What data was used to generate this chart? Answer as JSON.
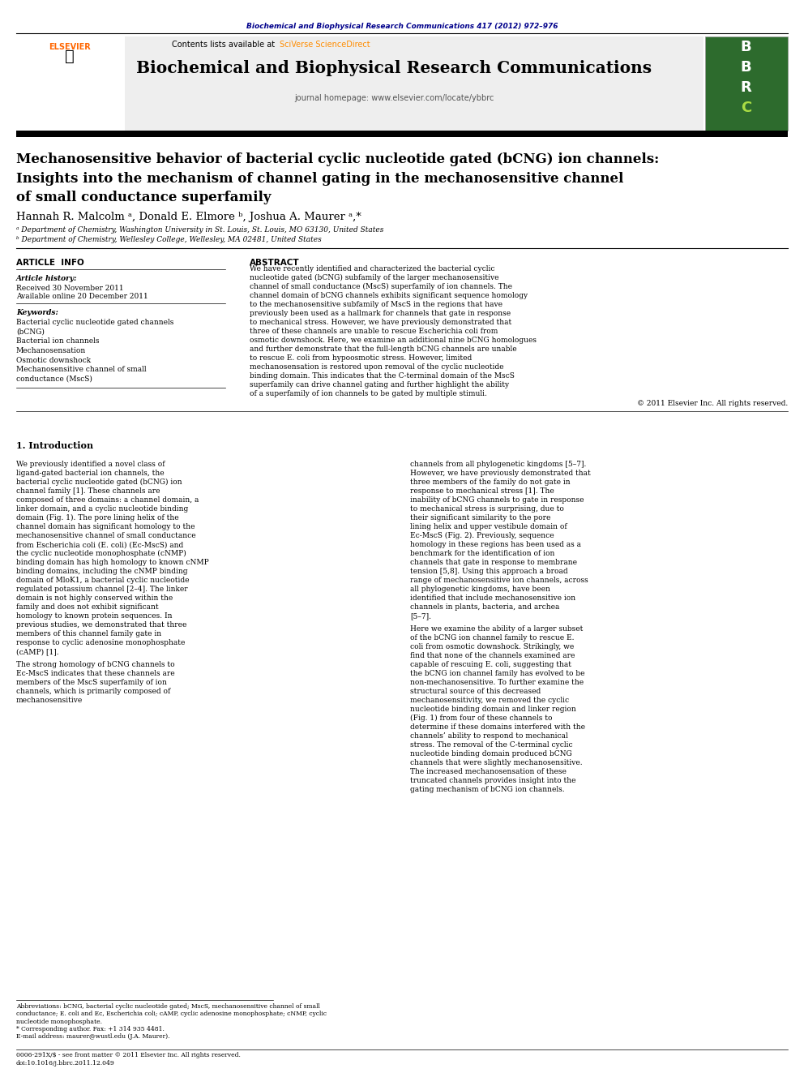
{
  "page_width": 9.92,
  "page_height": 13.23,
  "bg_color": "#ffffff",
  "header_journal_text": "Biochemical and Biophysical Research Communications 417 (2012) 972–976",
  "header_journal_color": "#00008B",
  "journal_name": "Biochemical and Biophysical Research Communications",
  "journal_homepage": "journal homepage: www.elsevier.com/locate/ybbrc",
  "contents_text": "Contents lists available at",
  "sciverse_text": "SciVerse ScienceDirect",
  "sciverse_color": "#FF8C00",
  "elsevier_color": "#FF6600",
  "article_title_line1": "Mechanosensitive behavior of bacterial cyclic nucleotide gated (bCNG) ion channels:",
  "article_title_line2": "Insights into the mechanism of channel gating in the mechanosensitive channel",
  "article_title_line3": "of small conductance superfamily",
  "authors": "Hannah R. Malcolm ᵃ, Donald E. Elmore ᵇ, Joshua A. Maurer ᵃ,*",
  "affiliation_a": "ᵃ Department of Chemistry, Washington University in St. Louis, St. Louis, MO 63130, United States",
  "affiliation_b": "ᵇ Department of Chemistry, Wellesley College, Wellesley, MA 02481, United States",
  "article_info_header": "ARTICLE  INFO",
  "abstract_header": "ABSTRACT",
  "article_history_label": "Article history:",
  "received_text": "Received 30 November 2011",
  "available_text": "Available online 20 December 2011",
  "keywords_label": "Keywords:",
  "keywords": [
    "Bacterial cyclic nucleotide gated channels",
    "(bCNG)",
    "Bacterial ion channels",
    "Mechanosensation",
    "Osmotic downshock",
    "Mechanosensitive channel of small",
    "conductance (MscS)"
  ],
  "abstract_text": "We have recently identified and characterized the bacterial cyclic nucleotide gated (bCNG) subfamily of the larger mechanosensitive channel of small conductance (MscS) superfamily of ion channels. The channel domain of bCNG channels exhibits significant sequence homology to the mechanosensitive subfamily of MscS in the regions that have previously been used as a hallmark for channels that gate in response to mechanical stress. However, we have previously demonstrated that three of these channels are unable to rescue Escherichia coli from osmotic downshock. Here, we examine an additional nine bCNG homologues and further demonstrate that the full-length bCNG channels are unable to rescue E. coli from hypoosmotic stress. However, limited mechanosensation is restored upon removal of the cyclic nucleotide binding domain. This indicates that the C-terminal domain of the MscS superfamily can drive channel gating and further highlight the ability of a superfamily of ion channels to be gated by multiple stimuli.",
  "copyright_text": "© 2011 Elsevier Inc. All rights reserved.",
  "intro_header": "1. Introduction",
  "intro_col1": "We previously identified a novel class of ligand-gated bacterial ion channels, the bacterial cyclic nucleotide gated (bCNG) ion channel family [1]. These channels are composed of three domains: a channel domain, a linker domain, and a cyclic nucleotide binding domain (Fig. 1). The pore lining helix of the channel domain has significant homology to the mechanosensitive channel of small conductance from Escherichia coli (E. coli) (Ec-MscS) and the cyclic nucleotide monophosphate (cNMP) binding domain has high homology to known cNMP binding domains, including the cNMP binding domain of MloK1, a bacterial cyclic nucleotide regulated potassium channel [2–4]. The linker domain is not highly conserved within the family and does not exhibit significant homology to known protein sequences. In previous studies, we demonstrated that three members of this channel family gate in response to cyclic adenosine monophosphate (cAMP) [1].\n    The strong homology of bCNG channels to Ec-MscS indicates that these channels are members of the MscS superfamily of ion channels, which is primarily composed of mechanosensitive",
  "intro_col2": "channels from all phylogenetic kingdoms [5–7]. However, we have previously demonstrated that three members of the family do not gate in response to mechanical stress [1]. The inability of bCNG channels to gate in response to mechanical stress is surprising, due to their significant similarity to the pore lining helix and upper vestibule domain of Ec-MscS (Fig. 2). Previously, sequence homology in these regions has been used as a benchmark for the identification of ion channels that gate in response to membrane tension [5,8]. Using this approach a broad range of mechanosensitive ion channels, across all phylogenetic kingdoms, have been identified that include mechanosensitive ion channels in plants, bacteria, and archea [5–7].\n    Here we examine the ability of a larger subset of the bCNG ion channel family to rescue E. coli from osmotic downshock. Strikingly, we find that none of the channels examined are capable of rescuing E. coli, suggesting that the bCNG ion channel family has evolved to be non-mechanosensitive. To further examine the structural source of this decreased mechanosensitivity, we removed the cyclic nucleotide binding domain and linker region (Fig. 1) from four of these channels to determine if these domains interfered with the channels’ ability to respond to mechanical stress. The removal of the C-terminal cyclic nucleotide binding domain produced bCNG channels that were slightly mechanosensitive. The increased mechanosensation of these truncated channels provides insight into the gating mechanism of bCNG ion channels.",
  "footnote_abbrev": "Abbreviations: bCNG, bacterial cyclic nucleotide gated; MscS, mechanosensitive channel of small conductance; E. coli and Ec, Escherichia coli; cAMP, cyclic adenosine monophosphate; cNMP, cyclic nucleotide monophosphate.",
  "footnote_corresponding": "* Corresponding author. Fax: +1 314 935 4481.",
  "footnote_email": "E-mail address: maurer@wustl.edu (J.A. Maurer).",
  "bottom_line1": "0006-291X/$ - see front matter © 2011 Elsevier Inc. All rights reserved.",
  "bottom_line2": "doi:10.1016/j.bbrc.2011.12.049"
}
